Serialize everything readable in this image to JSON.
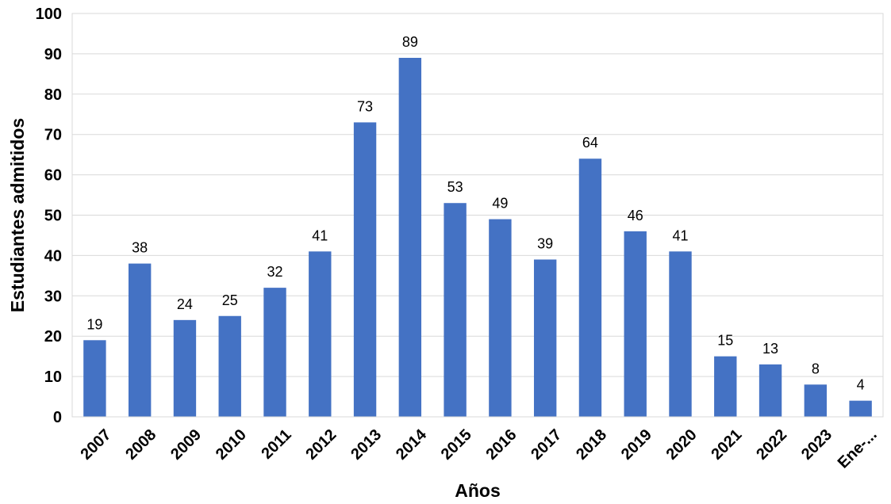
{
  "chart_data": {
    "type": "bar",
    "categories": [
      "2007",
      "2008",
      "2009",
      "2010",
      "2011",
      "2012",
      "2013",
      "2014",
      "2015",
      "2016",
      "2017",
      "2018",
      "2019",
      "2020",
      "2021",
      "2022",
      "2023",
      "Ene-..."
    ],
    "values": [
      19,
      38,
      24,
      25,
      32,
      41,
      73,
      89,
      53,
      49,
      39,
      64,
      46,
      41,
      15,
      13,
      8,
      4
    ],
    "data_labels": [
      "19",
      "38",
      "24",
      "25",
      "32",
      "41",
      "73",
      "89",
      "53",
      "49",
      "39",
      "64",
      "46",
      "41",
      "15",
      "13",
      "8",
      "4"
    ],
    "xlabel": "Años",
    "ylabel": "Estudiantes admitidos",
    "ylim": [
      0,
      100
    ],
    "yticks": [
      "0",
      "10",
      "20",
      "30",
      "40",
      "50",
      "60",
      "70",
      "80",
      "90",
      "100"
    ],
    "grid": true,
    "legend": "none",
    "colors": {
      "bar": "#4472C4",
      "grid": "#D9D9D9",
      "frame": "#D9D9D9"
    }
  }
}
